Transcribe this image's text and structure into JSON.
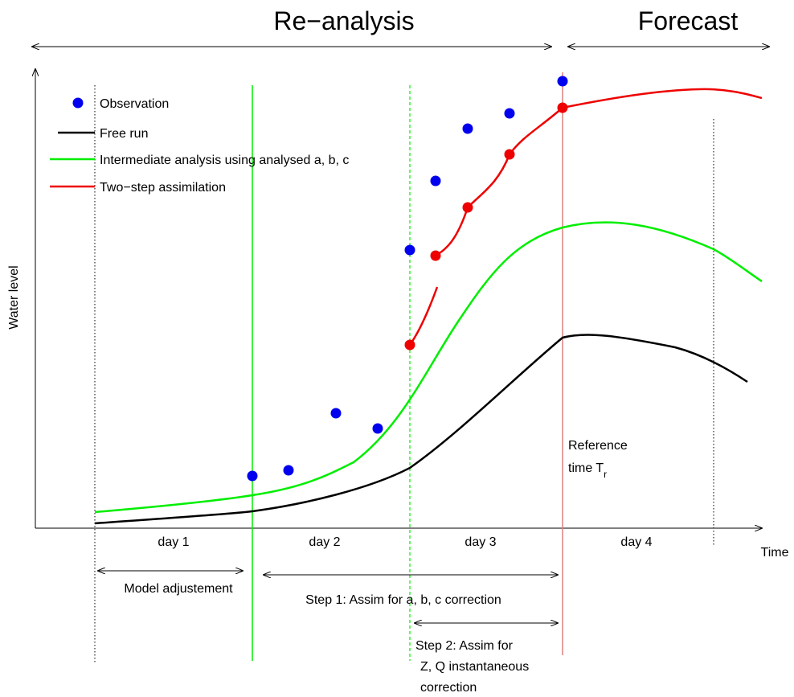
{
  "header": {
    "reanalysis": "Re−analysis",
    "forecast": "Forecast"
  },
  "axes": {
    "ylabel": "Water level",
    "xlabel": "Time"
  },
  "days": [
    "day 1",
    "day 2",
    "day 3",
    "day 4"
  ],
  "legend": [
    {
      "label": "Observation",
      "symbol": "dot",
      "color": "#0000ee"
    },
    {
      "label": "Free run",
      "symbol": "line",
      "color": "#000000"
    },
    {
      "label": "Intermediate analysis using analysed a, b, c",
      "symbol": "line",
      "color": "#00ee00"
    },
    {
      "label": "Two−step assimilation",
      "symbol": "line",
      "color": "#ee0000"
    }
  ],
  "reference": {
    "line1": "Reference",
    "line2": "time  T",
    "subscript": "r"
  },
  "annotations": {
    "model_adjustment": "Model adjustement",
    "step1": "Step 1: Assim for a, b, c correction",
    "step2_line1": "Step 2: Assim for",
    "step2_line2": "Z, Q instantaneous",
    "step2_line3": "correction"
  },
  "colors": {
    "observation": "#0000ee",
    "free_run": "#000000",
    "intermediate": "#00ee00",
    "two_step": "#ee0000",
    "reference_line": "#e08080"
  }
}
